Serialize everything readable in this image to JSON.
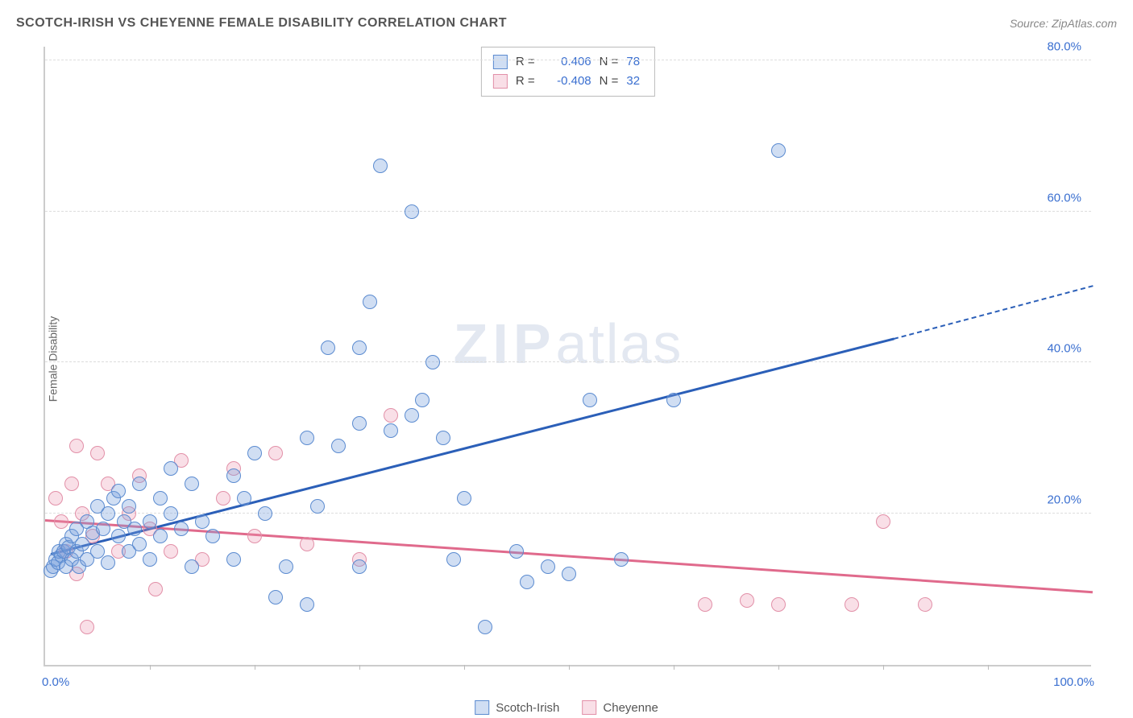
{
  "title": "SCOTCH-IRISH VS CHEYENNE FEMALE DISABILITY CORRELATION CHART",
  "source": "Source: ZipAtlas.com",
  "ylabel": "Female Disability",
  "watermark_bold": "ZIP",
  "watermark_rest": "atlas",
  "colors": {
    "series1_fill": "rgba(120,160,220,0.35)",
    "series1_stroke": "#5b8bd0",
    "series1_line": "#2b5fb8",
    "series2_fill": "rgba(235,150,175,0.30)",
    "series2_stroke": "#e290a8",
    "series2_line": "#e06a8c",
    "axis_text": "#3a6fd0",
    "tick_text": "#555"
  },
  "chart": {
    "type": "scatter",
    "xlim": [
      0,
      100
    ],
    "ylim": [
      0,
      82
    ],
    "grid_y": [
      20,
      40,
      60,
      80
    ],
    "yticks": [
      {
        "v": 20,
        "label": "20.0%"
      },
      {
        "v": 40,
        "label": "40.0%"
      },
      {
        "v": 60,
        "label": "60.0%"
      },
      {
        "v": 80,
        "label": "80.0%"
      }
    ],
    "xticks_minor": [
      10,
      20,
      30,
      40,
      50,
      60,
      70,
      80,
      90
    ],
    "xtick_labels": [
      {
        "v": 0,
        "label": "0.0%"
      },
      {
        "v": 100,
        "label": "100.0%"
      }
    ]
  },
  "stats_legend": [
    {
      "series": 1,
      "r_label": "R =",
      "r": "0.406",
      "n_label": "N =",
      "n": "78"
    },
    {
      "series": 2,
      "r_label": "R =",
      "r": "-0.408",
      "n_label": "N =",
      "n": "32"
    }
  ],
  "bottom_legend": [
    {
      "series": 1,
      "label": "Scotch-Irish"
    },
    {
      "series": 2,
      "label": "Cheyenne"
    }
  ],
  "trend_lines": {
    "series1_solid": {
      "x1": 0.5,
      "y1": 14.5,
      "x2": 81,
      "y2": 43
    },
    "series1_dash": {
      "x1": 81,
      "y1": 43,
      "x2": 100,
      "y2": 50
    },
    "series2_solid": {
      "x1": 0,
      "y1": 19,
      "x2": 100,
      "y2": 9.5
    }
  },
  "series1_points": [
    {
      "x": 0.5,
      "y": 12.5
    },
    {
      "x": 0.8,
      "y": 13
    },
    {
      "x": 1,
      "y": 14
    },
    {
      "x": 1.2,
      "y": 13.5
    },
    {
      "x": 1.3,
      "y": 15
    },
    {
      "x": 1.5,
      "y": 14.5
    },
    {
      "x": 1.8,
      "y": 15
    },
    {
      "x": 2,
      "y": 13
    },
    {
      "x": 2,
      "y": 16
    },
    {
      "x": 2.2,
      "y": 15.5
    },
    {
      "x": 2.5,
      "y": 14
    },
    {
      "x": 2.5,
      "y": 17
    },
    {
      "x": 3,
      "y": 15
    },
    {
      "x": 3,
      "y": 18
    },
    {
      "x": 3.2,
      "y": 13
    },
    {
      "x": 3.5,
      "y": 16
    },
    {
      "x": 4,
      "y": 19
    },
    {
      "x": 4,
      "y": 14
    },
    {
      "x": 4.5,
      "y": 17.5
    },
    {
      "x": 5,
      "y": 15
    },
    {
      "x": 5,
      "y": 21
    },
    {
      "x": 5.5,
      "y": 18
    },
    {
      "x": 6,
      "y": 20
    },
    {
      "x": 6,
      "y": 13.5
    },
    {
      "x": 6.5,
      "y": 22
    },
    {
      "x": 7,
      "y": 17
    },
    {
      "x": 7,
      "y": 23
    },
    {
      "x": 7.5,
      "y": 19
    },
    {
      "x": 8,
      "y": 15
    },
    {
      "x": 8,
      "y": 21
    },
    {
      "x": 8.5,
      "y": 18
    },
    {
      "x": 9,
      "y": 24
    },
    {
      "x": 9,
      "y": 16
    },
    {
      "x": 10,
      "y": 19
    },
    {
      "x": 10,
      "y": 14
    },
    {
      "x": 11,
      "y": 22
    },
    {
      "x": 11,
      "y": 17
    },
    {
      "x": 12,
      "y": 20
    },
    {
      "x": 12,
      "y": 26
    },
    {
      "x": 13,
      "y": 18
    },
    {
      "x": 14,
      "y": 24
    },
    {
      "x": 14,
      "y": 13
    },
    {
      "x": 15,
      "y": 19
    },
    {
      "x": 16,
      "y": 17
    },
    {
      "x": 18,
      "y": 25
    },
    {
      "x": 18,
      "y": 14
    },
    {
      "x": 19,
      "y": 22
    },
    {
      "x": 20,
      "y": 28
    },
    {
      "x": 21,
      "y": 20
    },
    {
      "x": 22,
      "y": 9
    },
    {
      "x": 23,
      "y": 13
    },
    {
      "x": 25,
      "y": 30
    },
    {
      "x": 25,
      "y": 8
    },
    {
      "x": 26,
      "y": 21
    },
    {
      "x": 27,
      "y": 42
    },
    {
      "x": 28,
      "y": 29
    },
    {
      "x": 30,
      "y": 32
    },
    {
      "x": 30,
      "y": 42
    },
    {
      "x": 30,
      "y": 13
    },
    {
      "x": 31,
      "y": 48
    },
    {
      "x": 32,
      "y": 66
    },
    {
      "x": 33,
      "y": 31
    },
    {
      "x": 35,
      "y": 60
    },
    {
      "x": 35,
      "y": 33
    },
    {
      "x": 36,
      "y": 35
    },
    {
      "x": 37,
      "y": 40
    },
    {
      "x": 38,
      "y": 30
    },
    {
      "x": 39,
      "y": 14
    },
    {
      "x": 40,
      "y": 22
    },
    {
      "x": 42,
      "y": 5
    },
    {
      "x": 45,
      "y": 15
    },
    {
      "x": 46,
      "y": 11
    },
    {
      "x": 48,
      "y": 13
    },
    {
      "x": 50,
      "y": 12
    },
    {
      "x": 52,
      "y": 35
    },
    {
      "x": 55,
      "y": 14
    },
    {
      "x": 60,
      "y": 35
    },
    {
      "x": 70,
      "y": 68
    }
  ],
  "series2_points": [
    {
      "x": 1,
      "y": 22
    },
    {
      "x": 1.5,
      "y": 19
    },
    {
      "x": 2,
      "y": 15
    },
    {
      "x": 2.5,
      "y": 24
    },
    {
      "x": 3,
      "y": 12
    },
    {
      "x": 3,
      "y": 29
    },
    {
      "x": 3.5,
      "y": 20
    },
    {
      "x": 4,
      "y": 5
    },
    {
      "x": 4.5,
      "y": 17
    },
    {
      "x": 5,
      "y": 28
    },
    {
      "x": 6,
      "y": 24
    },
    {
      "x": 7,
      "y": 15
    },
    {
      "x": 8,
      "y": 20
    },
    {
      "x": 9,
      "y": 25
    },
    {
      "x": 10,
      "y": 18
    },
    {
      "x": 10.5,
      "y": 10
    },
    {
      "x": 12,
      "y": 15
    },
    {
      "x": 13,
      "y": 27
    },
    {
      "x": 15,
      "y": 14
    },
    {
      "x": 17,
      "y": 22
    },
    {
      "x": 18,
      "y": 26
    },
    {
      "x": 20,
      "y": 17
    },
    {
      "x": 22,
      "y": 28
    },
    {
      "x": 25,
      "y": 16
    },
    {
      "x": 30,
      "y": 14
    },
    {
      "x": 33,
      "y": 33
    },
    {
      "x": 63,
      "y": 8
    },
    {
      "x": 67,
      "y": 8.5
    },
    {
      "x": 70,
      "y": 8
    },
    {
      "x": 77,
      "y": 8
    },
    {
      "x": 80,
      "y": 19
    },
    {
      "x": 84,
      "y": 8
    }
  ]
}
